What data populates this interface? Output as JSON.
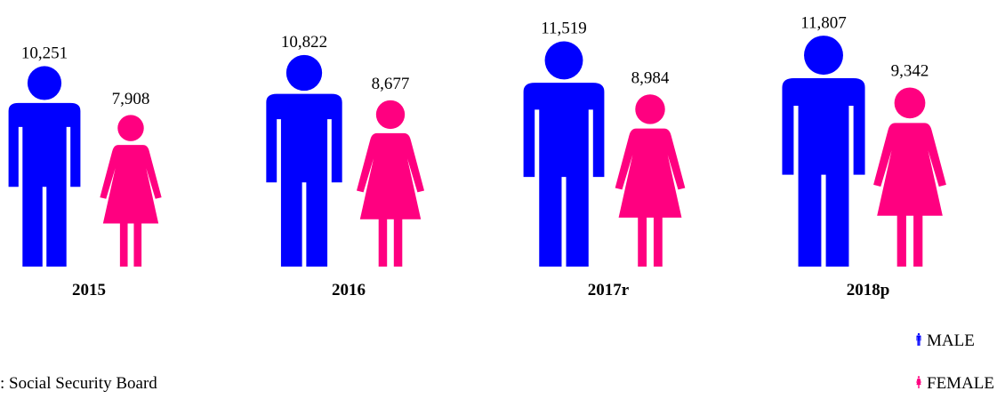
{
  "chart_data": {
    "type": "pictograph",
    "categories": [
      "2015",
      "2016",
      "2017r",
      "2018p"
    ],
    "series": [
      {
        "name": "MALE",
        "color": "#0000ff",
        "values": [
          10251,
          10822,
          11519,
          11807
        ],
        "value_labels": [
          "10,251",
          "10,822",
          "11,519",
          "11,807"
        ]
      },
      {
        "name": "FEMALE",
        "color": "#ff0080",
        "values": [
          7908,
          8677,
          8984,
          9342
        ],
        "value_labels": [
          "7,908",
          "8,677",
          "8,984",
          "9,342"
        ]
      }
    ],
    "source": ": Social Security Board"
  }
}
